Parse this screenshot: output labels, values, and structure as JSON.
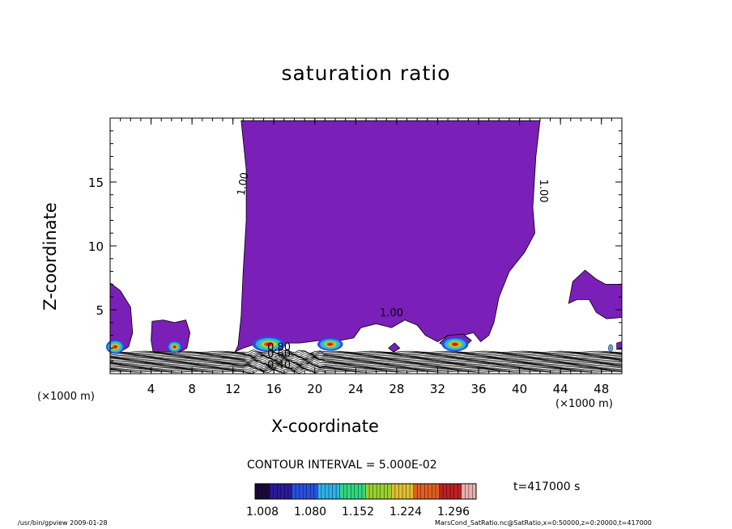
{
  "chart_data": {
    "type": "heatmap",
    "title": "saturation ratio",
    "xlabel": "X-coordinate",
    "ylabel": "Z-coordinate",
    "x_unit": "(×1000 m)",
    "x_unit_right": "(×1000 m)",
    "xlim": [
      0,
      50
    ],
    "ylim": [
      0,
      20
    ],
    "x_ticks": [
      4,
      8,
      12,
      16,
      20,
      24,
      28,
      32,
      36,
      40,
      44,
      48
    ],
    "y_ticks": [
      5,
      10,
      15
    ],
    "contour_labels": [
      {
        "text": "1.00",
        "x": 13.3,
        "y": 14.8
      },
      {
        "text": "1.00",
        "x": 42.0,
        "y": 14.3
      },
      {
        "text": "1.00",
        "x": 27.5,
        "y": 4.5
      },
      {
        "text": "0.80",
        "x": 16.5,
        "y": 1.8
      },
      {
        "text": "0.60",
        "x": 16.5,
        "y": 1.3
      },
      {
        "text": "0.40",
        "x": 16.5,
        "y": 0.4
      }
    ],
    "contour_interval": "CONTOUR INTERVAL = 5.000E-02",
    "colorbar": {
      "ticks": [
        "1.008",
        "1.080",
        "1.152",
        "1.224",
        "1.296"
      ],
      "colors": [
        "#1a0a3a",
        "#2a1a9a",
        "#2a4fe0",
        "#2fb0e8",
        "#30d880",
        "#9ad030",
        "#e0c030",
        "#e06020",
        "#c02020",
        "#e8b0b0"
      ]
    },
    "fill_color": "#7a1fb8",
    "grid": false
  },
  "time": "t=417000 s",
  "footer": {
    "left": "/usr/bin/gpview   2009-01-28",
    "right": "MarsCond_SatRatio.nc@SatRatio,x=0:50000,z=0:20000,t=417000"
  }
}
